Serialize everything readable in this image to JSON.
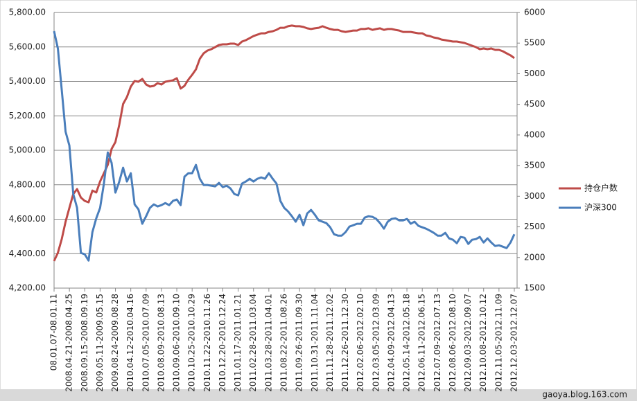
{
  "chart_data": {
    "type": "line",
    "categories": [
      "08.01.07-08.01.11",
      null,
      null,
      null,
      "2008.04.21-2008.04.25",
      null,
      null,
      null,
      "2008.09.15-2008.09.19",
      null,
      null,
      null,
      "2009.05.11-2009.05.15",
      null,
      null,
      null,
      "2009.08.24-2009.08.28",
      null,
      null,
      null,
      "2010.04.12-2010.04.16",
      null,
      null,
      null,
      "2010.07.05-2010.07.09",
      null,
      null,
      null,
      "2010.08.09-2010.08.13",
      null,
      null,
      null,
      "2010.09.06-2010.09.10",
      null,
      null,
      null,
      "2010.10.25-2010.10.29",
      null,
      null,
      null,
      "2010.11.22-2010.11.26",
      null,
      null,
      null,
      "2010.12.20-2010.12.24",
      null,
      null,
      null,
      "2011.01.17-2011.01.21",
      null,
      null,
      null,
      "2011.02.28-2011.03.04",
      null,
      null,
      null,
      "2011.03.28-2011.04.01",
      null,
      null,
      null,
      "2011.08.22-2011.08.26",
      null,
      null,
      null,
      "2011.09.26-2011.09.30",
      null,
      null,
      null,
      "2011.10.31-2011.11.04",
      null,
      null,
      null,
      "2011.11.28-2011.12.02",
      null,
      null,
      null,
      "2011.12.26-2011.12.30",
      null,
      null,
      null,
      "2012.02.06-2012.02.10",
      null,
      null,
      null,
      "2012.03.05-2012.03.09",
      null,
      null,
      null,
      "2012.04.09-2012.04.13",
      null,
      null,
      null,
      "2012.05.14-2012.05.18",
      null,
      null,
      null,
      "2012.06.11-2012.06.15",
      null,
      null,
      null,
      "2012.07.09-2012.07.13",
      null,
      null,
      null,
      "2012.08.06-2012.08.10",
      null,
      null,
      null,
      "2012.09.03-2012.09.07",
      null,
      null,
      null,
      "2012.10.08-2012.10.12",
      null,
      null,
      null,
      "2012.11.05-2012.11.09",
      null,
      null,
      null,
      "2012.12.03-2012.12.07"
    ],
    "series": [
      {
        "name": "持仓户数",
        "color": "#be4b48",
        "values": [
          4357,
          4405,
          4485,
          4585,
          4666,
          4746,
          4775,
          4726,
          4706,
          4698,
          4766,
          4755,
          4819,
          4867,
          4916,
          5008,
          5048,
          5149,
          5269,
          5309,
          5370,
          5402,
          5398,
          5414,
          5382,
          5370,
          5374,
          5390,
          5382,
          5398,
          5402,
          5406,
          5418,
          5358,
          5374,
          5410,
          5438,
          5470,
          5531,
          5563,
          5579,
          5587,
          5599,
          5611,
          5615,
          5615,
          5619,
          5619,
          5611,
          5631,
          5639,
          5651,
          5663,
          5671,
          5679,
          5679,
          5687,
          5691,
          5699,
          5711,
          5711,
          5720,
          5724,
          5720,
          5720,
          5716,
          5708,
          5704,
          5708,
          5711,
          5720,
          5711,
          5704,
          5699,
          5699,
          5691,
          5687,
          5691,
          5695,
          5695,
          5704,
          5704,
          5708,
          5699,
          5704,
          5708,
          5699,
          5704,
          5704,
          5699,
          5695,
          5687,
          5687,
          5687,
          5683,
          5679,
          5679,
          5667,
          5663,
          5655,
          5651,
          5643,
          5639,
          5635,
          5631,
          5631,
          5627,
          5623,
          5615,
          5607,
          5599,
          5587,
          5591,
          5587,
          5591,
          5583,
          5583,
          5575,
          5563,
          5551,
          5535
        ]
      },
      {
        "name": "沪深300",
        "color": "#4a7ebb",
        "axis": "y2",
        "values": [
          5695,
          5412,
          4733,
          4054,
          3827,
          3036,
          2810,
          2075,
          2052,
          1950,
          2414,
          2640,
          2810,
          3206,
          3715,
          3545,
          3059,
          3240,
          3466,
          3240,
          3376,
          2867,
          2787,
          2550,
          2674,
          2810,
          2867,
          2833,
          2855,
          2889,
          2855,
          2923,
          2946,
          2855,
          3319,
          3376,
          3376,
          3511,
          3285,
          3183,
          3183,
          3172,
          3161,
          3217,
          3149,
          3172,
          3127,
          3036,
          3014,
          3206,
          3240,
          3285,
          3240,
          3285,
          3308,
          3285,
          3376,
          3285,
          3206,
          2923,
          2810,
          2753,
          2674,
          2584,
          2697,
          2527,
          2719,
          2776,
          2697,
          2606,
          2584,
          2561,
          2493,
          2380,
          2357,
          2357,
          2414,
          2504,
          2527,
          2550,
          2550,
          2651,
          2674,
          2663,
          2629,
          2561,
          2470,
          2584,
          2629,
          2640,
          2606,
          2606,
          2629,
          2550,
          2584,
          2516,
          2493,
          2470,
          2437,
          2402,
          2357,
          2357,
          2402,
          2312,
          2289,
          2233,
          2335,
          2323,
          2221,
          2289,
          2301,
          2335,
          2244,
          2312,
          2244,
          2188,
          2199,
          2176,
          2154,
          2244,
          2380
        ]
      }
    ],
    "ylim": [
      4200,
      5800
    ],
    "yticks": [
      {
        "value": 4200,
        "label": "4,200.00"
      },
      {
        "value": 4400,
        "label": "4,400.00"
      },
      {
        "value": 4600,
        "label": "4,600.00"
      },
      {
        "value": 4800,
        "label": "4,800.00"
      },
      {
        "value": 5000,
        "label": "5,000.00"
      },
      {
        "value": 5200,
        "label": "5,200.00"
      },
      {
        "value": 5400,
        "label": "5,400.00"
      },
      {
        "value": 5600,
        "label": "5,600.00"
      },
      {
        "value": 5800,
        "label": "5,800.00"
      }
    ],
    "y2lim": [
      1500,
      6000
    ],
    "y2ticks": [
      1500,
      2000,
      2500,
      3000,
      3500,
      4000,
      4500,
      5000,
      5500,
      6000
    ],
    "grid": true,
    "legend": "right",
    "watermark": "gaoya.blog.163.com"
  }
}
